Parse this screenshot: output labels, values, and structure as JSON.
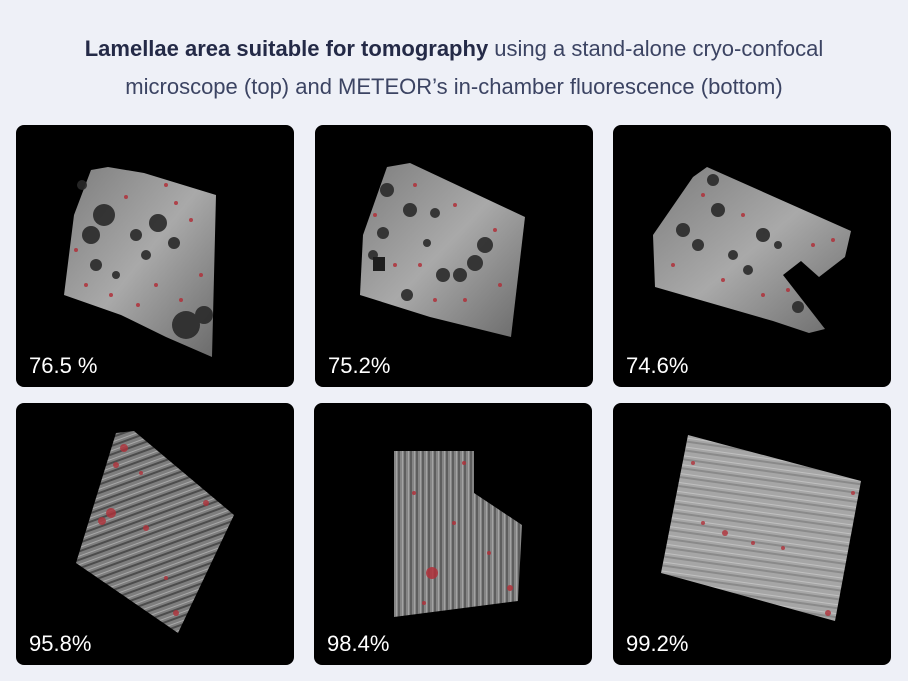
{
  "title": {
    "bold": "Lamellae area suitable for tomography",
    "line1_rest": " using a stand-alone cryo-confocal",
    "line2": "microscope (top) and METEOR’s in-chamber fluorescence (bottom)"
  },
  "panels": [
    {
      "percent": "76.5 %"
    },
    {
      "percent": "75.2%"
    },
    {
      "percent": "74.6%"
    },
    {
      "percent": "95.8%"
    },
    {
      "percent": "98.4%"
    },
    {
      "percent": "99.2%"
    }
  ],
  "colors": {
    "background": "#eef0f7",
    "panel": "#000000",
    "overlay_red": "#b0313a"
  }
}
